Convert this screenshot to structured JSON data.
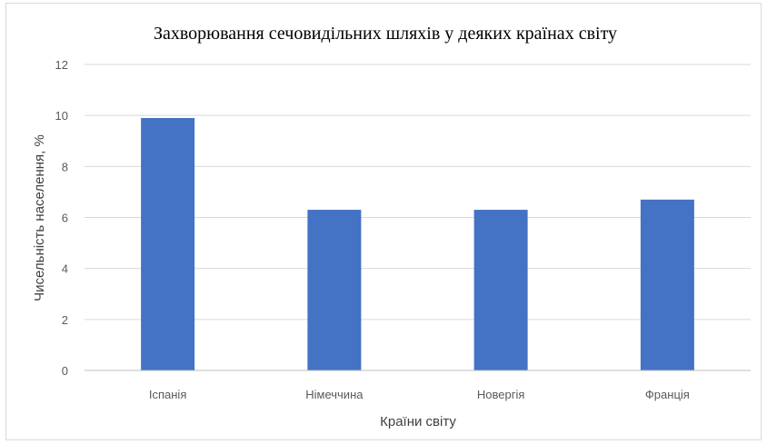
{
  "chart_data": {
    "type": "bar",
    "title": "Захворювання сечовидільних шляхів у деяких країнах світу",
    "xlabel": "Країни світу",
    "ylabel": "Чисельність населення, %",
    "categories": [
      "Іспанія",
      "Німеччина",
      "Новергія",
      "Франція"
    ],
    "values": [
      9.9,
      6.3,
      6.3,
      6.7
    ],
    "ylim": [
      0,
      12
    ],
    "yticks": [
      "0",
      "2",
      "4",
      "6",
      "8",
      "10",
      "12"
    ],
    "grid": true,
    "legend": "none",
    "bar_color": "#4472c4",
    "grid_color": "#d9d9d9",
    "axis_color": "#bfbfbf"
  }
}
